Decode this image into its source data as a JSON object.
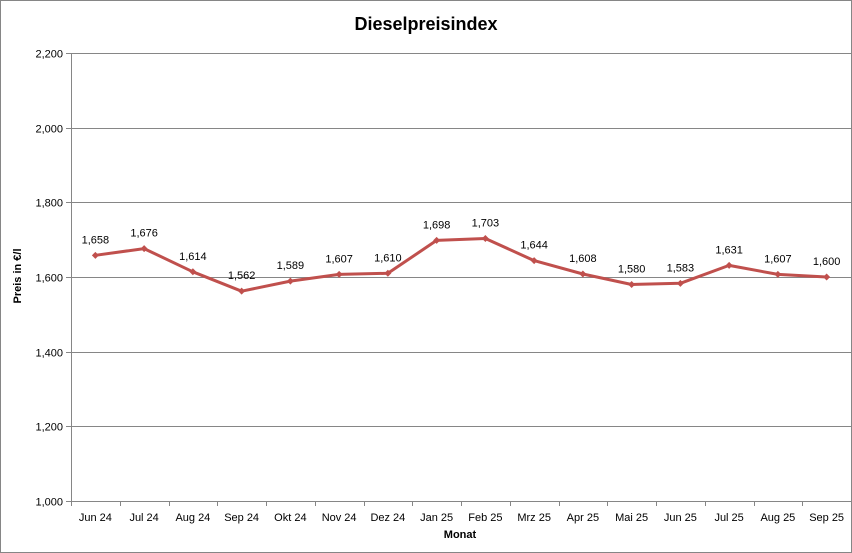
{
  "chart_data": {
    "type": "line",
    "title": "Dieselpreisindex",
    "xlabel": "Monat",
    "ylabel": "Preis in €/l",
    "categories": [
      "Jun 24",
      "Jul 24",
      "Aug 24",
      "Sep 24",
      "Okt 24",
      "Nov 24",
      "Dez 24",
      "Jan 25",
      "Feb 25",
      "Mrz 25",
      "Apr 25",
      "Mai 25",
      "Jun 25",
      "Jul 25",
      "Aug 25",
      "Sep 25"
    ],
    "series": [
      {
        "values": [
          1.658,
          1.676,
          1.614,
          1.562,
          1.589,
          1.607,
          1.61,
          1.698,
          1.703,
          1.644,
          1.608,
          1.58,
          1.583,
          1.631,
          1.607,
          1.6
        ],
        "labels": [
          "1,658",
          "1,676",
          "1,614",
          "1,562",
          "1,589",
          "1,607",
          "1,610",
          "1,698",
          "1,703",
          "1,644",
          "1,608",
          "1,580",
          "1,583",
          "1,631",
          "1,607",
          "1,600"
        ],
        "color": "#C0504D"
      }
    ],
    "ylim": [
      1.0,
      2.2
    ],
    "yticks": [
      1.0,
      1.2,
      1.4,
      1.6,
      1.8,
      2.0,
      2.2
    ],
    "ytick_labels": [
      "1,000",
      "1,200",
      "1,400",
      "1,600",
      "1,800",
      "2,000",
      "2,200"
    ],
    "grid": true,
    "grid_color": "#868686",
    "axis_color": "#868686"
  }
}
